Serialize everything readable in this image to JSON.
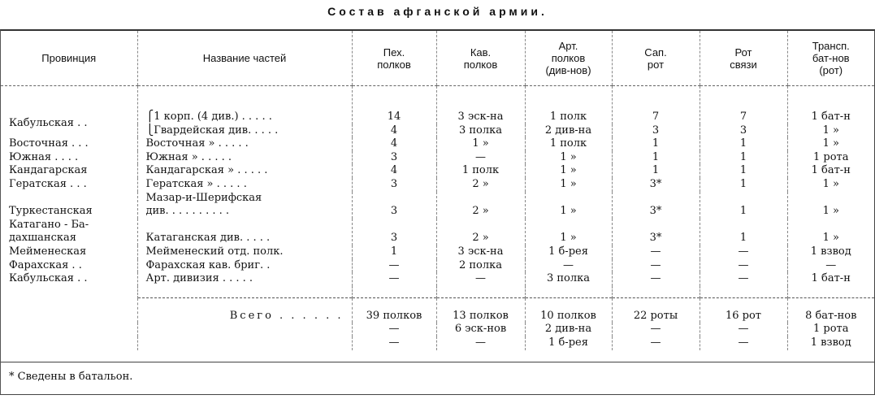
{
  "title": "Состав афганской армии.",
  "headers": [
    "Провинция",
    "Название частей",
    "Пех.\nполков",
    "Кав.\nполков",
    "Арт.\nполков\n(див-нов)",
    "Сап.\nрот",
    "Рот\nсвязи",
    "Трансп.\nбат-нов\n(рот)"
  ],
  "rows": [
    {
      "province": "Кабульская . .",
      "unit": "⎧1 корп. (4 див.) . . . . .",
      "inf": "14",
      "cav": "3 эск-на",
      "art": "1 полк",
      "sap": "7",
      "comm": "7",
      "trans": "1 бат-н"
    },
    {
      "province": "",
      "unit": "⎩Гвардейская див. . . . .",
      "inf": "4",
      "cav": "3 полка",
      "art": "2 див-на",
      "sap": "3",
      "comm": "3",
      "trans": "1   »"
    },
    {
      "province": "Восточная . . .",
      "unit": "Восточная     » . . . . .",
      "inf": "4",
      "cav": "1   »",
      "art": "1 полк",
      "sap": "1",
      "comm": "1",
      "trans": "1   »"
    },
    {
      "province": "Южная  . . . .",
      "unit": "Южная         » . . . . .",
      "inf": "3",
      "cav": "—",
      "art": "1   »",
      "sap": "1",
      "comm": "1",
      "trans": "1 рота"
    },
    {
      "province": "Кандагарская",
      "unit": "Кандагарская » . . . . .",
      "inf": "4",
      "cav": "1 полк",
      "art": "1   »",
      "sap": "1",
      "comm": "1",
      "trans": "1 бат-н"
    },
    {
      "province": "Гератская . . .",
      "unit": "Гератская     » . . . . .",
      "inf": "3",
      "cav": "2   »",
      "art": "1   »",
      "sap": "3*",
      "comm": "1",
      "trans": "1   »"
    },
    {
      "province": "Туркестанская\n ",
      "unit": "Мазар-и-Шерифская\n     див. . . . . . . . . .",
      "inf": "3",
      "cav": "2   »",
      "art": "1   »",
      "sap": "3*",
      "comm": "1",
      "trans": "1   »"
    },
    {
      "province": "Катагано - Ба-\n   дахшанская",
      "unit": "Катаганская див. . . . .",
      "inf": "3",
      "cav": "2   »",
      "art": "1   »",
      "sap": "3*",
      "comm": "1",
      "trans": "1   »"
    },
    {
      "province": "Мейменеская",
      "unit": "Мейменеский отд. полк.",
      "inf": "1",
      "cav": "3 эск-на",
      "art": "1 б-рея",
      "sap": "—",
      "comm": "—",
      "trans": "1 взвод"
    },
    {
      "province": "Фарахская  . .",
      "unit": "Фарахская кав. бриг.  .",
      "inf": "—",
      "cav": "2 полка",
      "art": "—",
      "sap": "—",
      "comm": "—",
      "trans": "—"
    },
    {
      "province": "Кабульская . .",
      "unit": "Арт. дивизия  . . . . .",
      "inf": "—",
      "cav": "—",
      "art": "3 полка",
      "sap": "—",
      "comm": "—",
      "trans": "1 бат-н"
    }
  ],
  "totals": {
    "label": "Всего . . . . . .",
    "rows": [
      {
        "inf": "39 полков",
        "cav": "13 полков",
        "art": "10 полков",
        "sap": "22 роты",
        "comm": "16 рот",
        "trans": "8 бат-нов"
      },
      {
        "inf": "—",
        "cav": "6 эск-нов",
        "art": "2 див-на",
        "sap": "—",
        "comm": "—",
        "trans": "1 рота"
      },
      {
        "inf": "—",
        "cav": "—",
        "art": "1 б-рея",
        "sap": "—",
        "comm": "—",
        "trans": "1 взвод"
      }
    ]
  },
  "footnote": "* Сведены в батальон."
}
